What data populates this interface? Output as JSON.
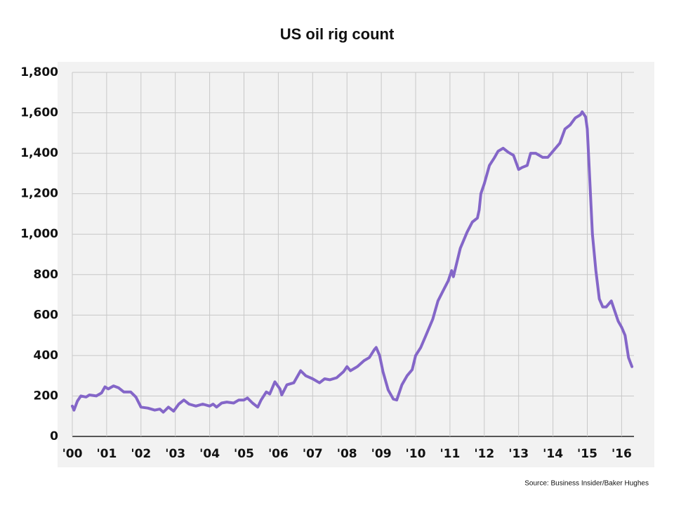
{
  "chart_data": {
    "type": "line",
    "title": "US oil rig count",
    "source": "Source: Business Insider/Baker Hughes",
    "color": "#8466c8",
    "grid": true,
    "xlim": [
      2000,
      2016.36
    ],
    "ylim": [
      0,
      1800
    ],
    "xticks": [
      {
        "value": 2000,
        "label": "'00"
      },
      {
        "value": 2001,
        "label": "'01"
      },
      {
        "value": 2002,
        "label": "'02"
      },
      {
        "value": 2003,
        "label": "'03"
      },
      {
        "value": 2004,
        "label": "'04"
      },
      {
        "value": 2005,
        "label": "'05"
      },
      {
        "value": 2006,
        "label": "'06"
      },
      {
        "value": 2007,
        "label": "'07"
      },
      {
        "value": 2008,
        "label": "'08"
      },
      {
        "value": 2009,
        "label": "'09"
      },
      {
        "value": 2010,
        "label": "'10"
      },
      {
        "value": 2011,
        "label": "'11"
      },
      {
        "value": 2012,
        "label": "'12"
      },
      {
        "value": 2013,
        "label": "'13"
      },
      {
        "value": 2014,
        "label": "'14"
      },
      {
        "value": 2015,
        "label": "'15"
      },
      {
        "value": 2016,
        "label": "'16"
      }
    ],
    "yticks": [
      0,
      200,
      400,
      600,
      800,
      {
        "value": 1000,
        "label": "1,000"
      },
      {
        "value": 1200,
        "label": "1,200"
      },
      {
        "value": 1400,
        "label": "1,400"
      },
      {
        "value": 1600,
        "label": "1,600"
      },
      {
        "value": 1800,
        "label": "1,800"
      }
    ],
    "x": [
      2000.0,
      2000.05,
      2000.15,
      2000.25,
      2000.4,
      2000.5,
      2000.7,
      2000.85,
      2000.95,
      2001.05,
      2001.2,
      2001.35,
      2001.5,
      2001.7,
      2001.85,
      2002.0,
      2002.2,
      2002.4,
      2002.55,
      2002.65,
      2002.8,
      2002.95,
      2003.1,
      2003.25,
      2003.4,
      2003.6,
      2003.8,
      2004.0,
      2004.1,
      2004.2,
      2004.35,
      2004.5,
      2004.7,
      2004.85,
      2005.0,
      2005.1,
      2005.25,
      2005.4,
      2005.5,
      2005.65,
      2005.75,
      2005.9,
      2006.05,
      2006.1,
      2006.25,
      2006.45,
      2006.55,
      2006.65,
      2006.8,
      2007.0,
      2007.2,
      2007.35,
      2007.5,
      2007.7,
      2007.9,
      2008.0,
      2008.1,
      2008.3,
      2008.5,
      2008.65,
      2008.8,
      2008.85,
      2008.95,
      2009.05,
      2009.2,
      2009.35,
      2009.45,
      2009.6,
      2009.75,
      2009.9,
      2010.0,
      2010.15,
      2010.3,
      2010.5,
      2010.65,
      2010.8,
      2010.95,
      2011.05,
      2011.1,
      2011.3,
      2011.5,
      2011.65,
      2011.8,
      2011.85,
      2011.9,
      2012.0,
      2012.15,
      2012.3,
      2012.4,
      2012.55,
      2012.7,
      2012.85,
      2013.0,
      2013.1,
      2013.25,
      2013.35,
      2013.5,
      2013.7,
      2013.85,
      2014.0,
      2014.2,
      2014.35,
      2014.5,
      2014.65,
      2014.8,
      2014.85,
      2014.95,
      2015.0,
      2015.05,
      2015.15,
      2015.25,
      2015.35,
      2015.45,
      2015.55,
      2015.7,
      2015.8,
      2015.9,
      2016.0,
      2016.1,
      2016.2,
      2016.3
    ],
    "values": [
      150,
      130,
      175,
      200,
      195,
      205,
      200,
      215,
      245,
      235,
      250,
      240,
      220,
      220,
      195,
      145,
      140,
      130,
      135,
      120,
      145,
      125,
      160,
      180,
      160,
      150,
      160,
      150,
      160,
      145,
      165,
      170,
      165,
      180,
      180,
      190,
      165,
      145,
      180,
      220,
      210,
      270,
      235,
      205,
      255,
      265,
      295,
      325,
      300,
      285,
      265,
      285,
      280,
      290,
      320,
      345,
      325,
      345,
      375,
      390,
      430,
      440,
      400,
      320,
      230,
      185,
      180,
      255,
      300,
      330,
      400,
      440,
      500,
      580,
      670,
      720,
      770,
      820,
      790,
      930,
      1010,
      1060,
      1080,
      1120,
      1200,
      1250,
      1340,
      1380,
      1410,
      1425,
      1405,
      1390,
      1320,
      1330,
      1340,
      1400,
      1400,
      1380,
      1380,
      1410,
      1450,
      1520,
      1540,
      1575,
      1590,
      1605,
      1580,
      1520,
      1350,
      1000,
      820,
      680,
      640,
      640,
      670,
      620,
      570,
      540,
      500,
      390,
      345
    ]
  }
}
